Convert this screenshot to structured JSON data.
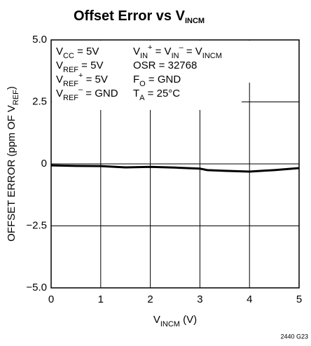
{
  "chart_data": {
    "type": "line",
    "title": [
      "Offset Error vs V",
      {
        "text": "INCM",
        "shift": "sub"
      }
    ],
    "x_label": [
      "V",
      {
        "text": "INCM",
        "shift": "sub"
      },
      " (V)"
    ],
    "y_label": [
      "OFFSET ERROR (ppm OF V",
      {
        "text": "REF",
        "shift": "sub"
      },
      ")"
    ],
    "annotations": [
      [
        [
          "V",
          {
            "text": "CC",
            "shift": "sub"
          },
          " = 5V"
        ],
        [
          "V",
          {
            "text": "REF",
            "shift": "sub"
          },
          " = 5V"
        ],
        [
          "V",
          {
            "text": "REF",
            "shift": "sub"
          },
          {
            "text": "+",
            "shift": "super"
          },
          " = 5V"
        ],
        [
          "V",
          {
            "text": "REF",
            "shift": "sub"
          },
          {
            "text": "–",
            "shift": "super"
          },
          " = GND"
        ]
      ],
      [
        [
          "V",
          {
            "text": "IN",
            "shift": "sub"
          },
          {
            "text": "+",
            "shift": "super"
          },
          " = V",
          {
            "text": "IN",
            "shift": "sub"
          },
          {
            "text": "–",
            "shift": "super"
          },
          " = V",
          {
            "text": "INCM",
            "shift": "sub"
          }
        ],
        [
          "OSR = 32768"
        ],
        [
          "F",
          {
            "text": "O",
            "shift": "sub"
          },
          " = GND"
        ],
        [
          "T",
          {
            "text": "A",
            "shift": "sub"
          },
          " = 25°C"
        ]
      ]
    ],
    "footnote": "2440 G23",
    "x": [
      0,
      0.5,
      1,
      1.5,
      2,
      2.5,
      3,
      3.15,
      3.5,
      4,
      4.5,
      5
    ],
    "values": [
      -0.06,
      -0.08,
      -0.09,
      -0.14,
      -0.12,
      -0.15,
      -0.19,
      -0.25,
      -0.28,
      -0.31,
      -0.25,
      -0.17
    ],
    "color": "#000000",
    "xlim": [
      0,
      5
    ],
    "xticks": [
      0,
      1,
      2,
      3,
      4,
      5
    ],
    "ylim": [
      -5,
      5
    ],
    "yticks": [
      {
        "value": -5,
        "label": "−5.0"
      },
      {
        "value": -2.5,
        "label": "−2.5"
      },
      0,
      2.5,
      {
        "value": 5,
        "label": "5.0"
      }
    ],
    "grid": true
  }
}
